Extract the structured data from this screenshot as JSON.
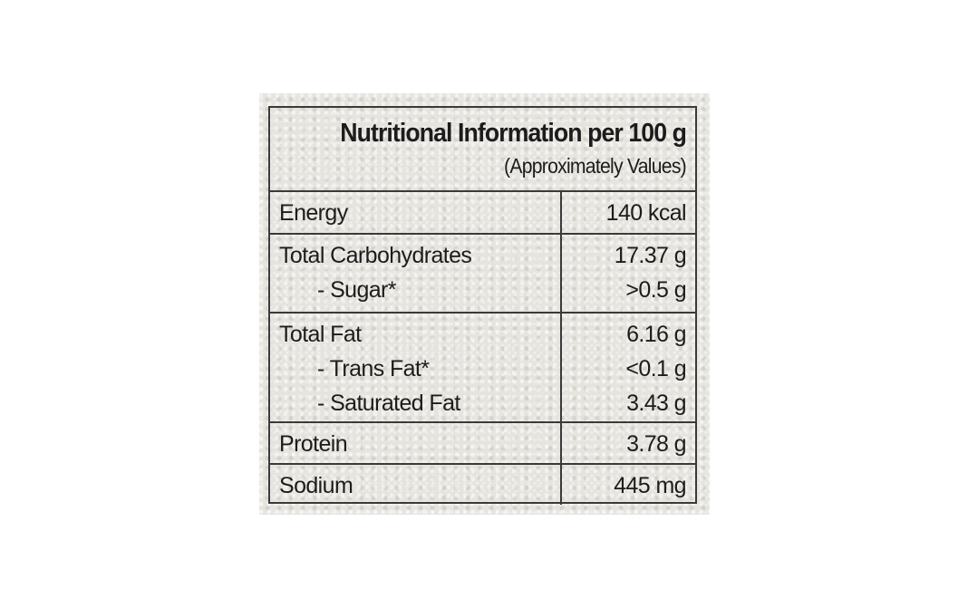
{
  "header": {
    "title": "Nutritional Information per 100 g",
    "subtitle": "(Approximately Values)"
  },
  "table": {
    "groups": [
      [
        [
          "Energy",
          "140 kcal"
        ]
      ],
      [
        [
          "Total Carbohydrates",
          "17.37 g"
        ],
        [
          "- Sugar*",
          ">0.5 g"
        ]
      ],
      [
        [
          "Total Fat",
          "6.16 g"
        ],
        [
          "- Trans Fat*",
          "<0.1 g"
        ],
        [
          "- Saturated Fat",
          "3.43 g"
        ]
      ],
      [
        [
          "Protein",
          "3.78 g"
        ]
      ],
      [
        [
          "Sodium",
          "445 mg"
        ]
      ]
    ]
  }
}
